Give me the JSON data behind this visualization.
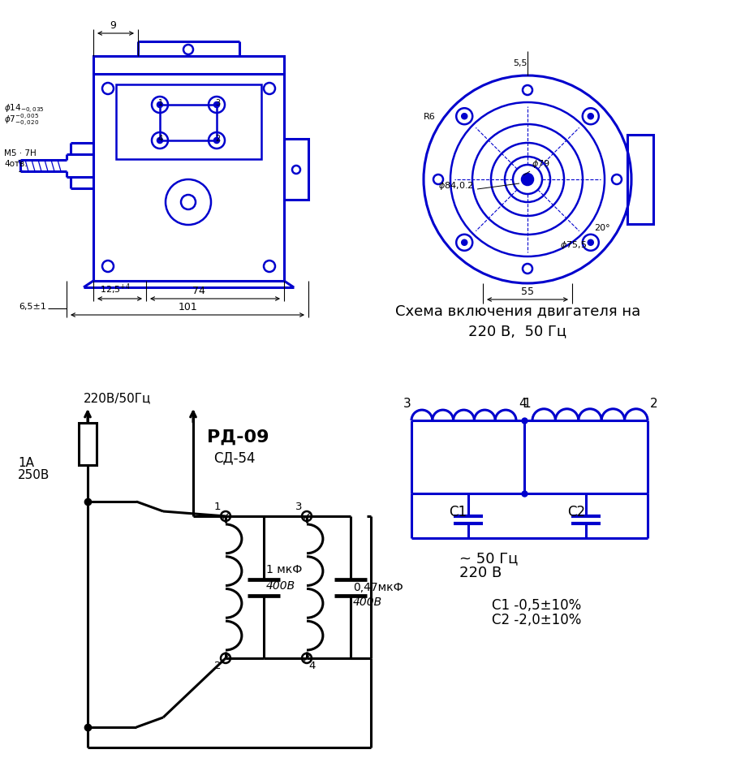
{
  "bg_color": "#ffffff",
  "blue": "#0000CD",
  "black": "#000000",
  "title_right": "Схема включения двигателя на\n220 В,  50 Гц",
  "label_rd09": "РД-09",
  "label_sd54": "СД-54",
  "label_220": "220В/50Гц",
  "label_1A": "1А",
  "label_250V": "250В",
  "label_1mkF": "1 мкФ",
  "label_400V_1": "400В",
  "label_047mkF": "0,47мкФ",
  "label_400V_2": "400В",
  "label_C1": "С1",
  "label_C2": "С2",
  "label_freq": "~ 50 Гц",
  "label_volt": "220 В",
  "label_C1_val": "С1 -0,5±10%",
  "label_C2_val": "С2 -2,0±10%",
  "lw": 1.8,
  "lw_thick": 2.2
}
